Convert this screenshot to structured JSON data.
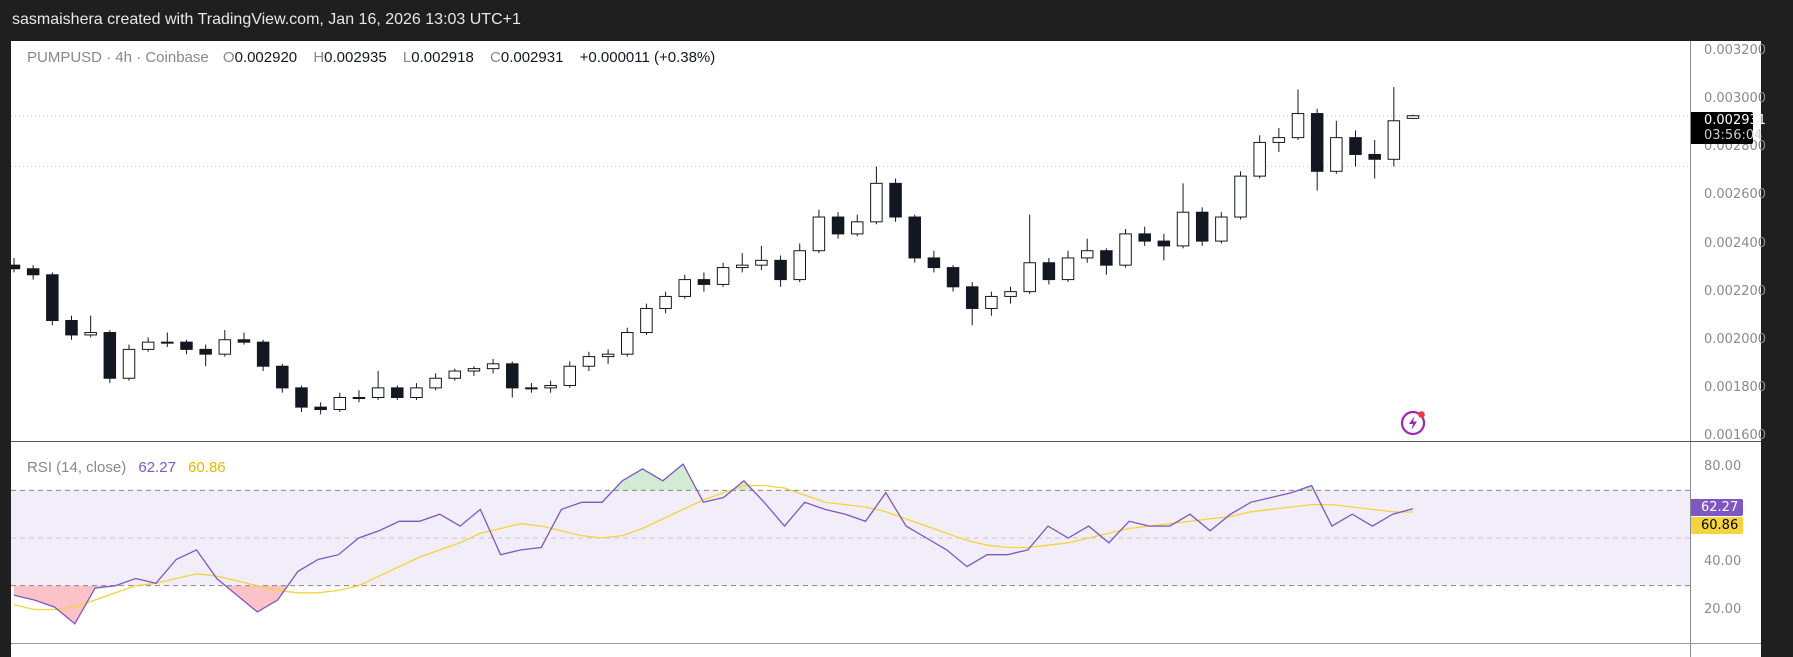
{
  "header": {
    "credit": "sasmaishera created with TradingView.com, Jan 16, 2026 13:03 UTC+1"
  },
  "legend": {
    "symbol": "PUMPUSD · 4h · Coinbase",
    "o_label": "O",
    "o": "0.002920",
    "h_label": "H",
    "h": "0.002935",
    "l_label": "L",
    "l": "0.002918",
    "c_label": "C",
    "c": "0.002931",
    "change": "+0.000011 (+0.38%)"
  },
  "price_tag": {
    "price": "0.002931",
    "countdown": "03:56:04"
  },
  "rsi_legend": {
    "label": "RSI (14, close)",
    "rsi": "62.27",
    "ma": "60.86"
  },
  "colors": {
    "up": "#ffffff",
    "down": "#131722",
    "rsi": "#7e57c2",
    "rsi_ma": "#f5d33b",
    "band": "#7e57c2",
    "bolt": "#9c27b0"
  },
  "icons": {
    "alert": "lightning-bolt-icon"
  },
  "chart_data": [
    {
      "type": "candlestick",
      "title": "PUMPUSD · 4h · Coinbase",
      "ylim": [
        0.0016,
        0.0032
      ],
      "y_ticks": [
        "0.003200",
        "0.003000",
        "0.002800",
        "0.002600",
        "0.002400",
        "0.002200",
        "0.002000",
        "0.001800",
        "0.001600"
      ],
      "y_tick_values": [
        0.0032,
        0.003,
        0.0028,
        0.0026,
        0.0024,
        0.0022,
        0.002,
        0.0018,
        0.0016
      ],
      "last_price_line": 0.002931,
      "reference_line": 0.00272,
      "candles": [
        [
          0.00231,
          0.00234,
          0.00228,
          0.002295
        ],
        [
          0.002295,
          0.00231,
          0.00225,
          0.00227
        ],
        [
          0.00227,
          0.00228,
          0.00206,
          0.00208
        ],
        [
          0.00208,
          0.0021,
          0.002,
          0.00202
        ],
        [
          0.00202,
          0.0021,
          0.00201,
          0.00203
        ],
        [
          0.00203,
          0.00204,
          0.00182,
          0.00184
        ],
        [
          0.00184,
          0.00198,
          0.00183,
          0.00196
        ],
        [
          0.00196,
          0.00201,
          0.00195,
          0.00199
        ],
        [
          0.00199,
          0.00203,
          0.00197,
          0.00199
        ],
        [
          0.00199,
          0.002,
          0.00194,
          0.00196
        ],
        [
          0.00196,
          0.00198,
          0.00189,
          0.00194
        ],
        [
          0.00194,
          0.00204,
          0.00193,
          0.002
        ],
        [
          0.002,
          0.00203,
          0.00198,
          0.00199
        ],
        [
          0.00199,
          0.002,
          0.00187,
          0.00189
        ],
        [
          0.00189,
          0.0019,
          0.00178,
          0.0018
        ],
        [
          0.0018,
          0.00181,
          0.0017,
          0.00172
        ],
        [
          0.00172,
          0.00174,
          0.00169,
          0.00171
        ],
        [
          0.00171,
          0.00178,
          0.0017,
          0.00176
        ],
        [
          0.00176,
          0.00179,
          0.00174,
          0.00176
        ],
        [
          0.00176,
          0.00187,
          0.00175,
          0.0018
        ],
        [
          0.0018,
          0.00181,
          0.00175,
          0.00176
        ],
        [
          0.00176,
          0.00182,
          0.00175,
          0.0018
        ],
        [
          0.0018,
          0.00186,
          0.00179,
          0.00184
        ],
        [
          0.00184,
          0.00188,
          0.00183,
          0.00187
        ],
        [
          0.00187,
          0.00189,
          0.00185,
          0.00188
        ],
        [
          0.00188,
          0.00192,
          0.00186,
          0.0019
        ],
        [
          0.0019,
          0.00191,
          0.00176,
          0.0018
        ],
        [
          0.0018,
          0.00182,
          0.00178,
          0.0018
        ],
        [
          0.0018,
          0.00183,
          0.00178,
          0.00181
        ],
        [
          0.00181,
          0.00191,
          0.0018,
          0.00189
        ],
        [
          0.00189,
          0.00195,
          0.00187,
          0.00193
        ],
        [
          0.00193,
          0.00196,
          0.0019,
          0.00194
        ],
        [
          0.00194,
          0.00205,
          0.00193,
          0.00203
        ],
        [
          0.00203,
          0.00215,
          0.00202,
          0.00213
        ],
        [
          0.00213,
          0.0022,
          0.00211,
          0.00218
        ],
        [
          0.00218,
          0.00227,
          0.00217,
          0.00225
        ],
        [
          0.00225,
          0.00228,
          0.0022,
          0.00223
        ],
        [
          0.00223,
          0.00232,
          0.00222,
          0.0023
        ],
        [
          0.0023,
          0.00236,
          0.00228,
          0.00231
        ],
        [
          0.00231,
          0.00239,
          0.00229,
          0.00233
        ],
        [
          0.00233,
          0.00235,
          0.00222,
          0.00225
        ],
        [
          0.00225,
          0.0024,
          0.00224,
          0.00237
        ],
        [
          0.00237,
          0.00254,
          0.00236,
          0.00251
        ],
        [
          0.00251,
          0.00253,
          0.00242,
          0.00244
        ],
        [
          0.00244,
          0.00252,
          0.00243,
          0.00249
        ],
        [
          0.00249,
          0.00272,
          0.00248,
          0.00265
        ],
        [
          0.00265,
          0.00267,
          0.00249,
          0.00251
        ],
        [
          0.00251,
          0.00252,
          0.00232,
          0.00234
        ],
        [
          0.00234,
          0.00237,
          0.00228,
          0.0023
        ],
        [
          0.0023,
          0.00231,
          0.0022,
          0.00222
        ],
        [
          0.00222,
          0.00224,
          0.00206,
          0.00213
        ],
        [
          0.00213,
          0.0022,
          0.0021,
          0.00218
        ],
        [
          0.00218,
          0.00222,
          0.00215,
          0.0022
        ],
        [
          0.0022,
          0.00252,
          0.00219,
          0.00232
        ],
        [
          0.00232,
          0.00234,
          0.00223,
          0.00225
        ],
        [
          0.00225,
          0.00237,
          0.00224,
          0.00234
        ],
        [
          0.00234,
          0.00242,
          0.00232,
          0.00237
        ],
        [
          0.00237,
          0.00238,
          0.00227,
          0.00231
        ],
        [
          0.00231,
          0.00246,
          0.0023,
          0.00244
        ],
        [
          0.00244,
          0.00247,
          0.00239,
          0.00241
        ],
        [
          0.00241,
          0.00244,
          0.00233,
          0.00239
        ],
        [
          0.00239,
          0.00265,
          0.00238,
          0.00253
        ],
        [
          0.00253,
          0.00255,
          0.00239,
          0.00241
        ],
        [
          0.00241,
          0.00253,
          0.0024,
          0.00251
        ],
        [
          0.00251,
          0.0027,
          0.0025,
          0.00268
        ],
        [
          0.00268,
          0.00285,
          0.00267,
          0.00282
        ],
        [
          0.00282,
          0.00288,
          0.00278,
          0.00284
        ],
        [
          0.00284,
          0.00304,
          0.00283,
          0.00294
        ],
        [
          0.00294,
          0.00296,
          0.00262,
          0.0027
        ],
        [
          0.0027,
          0.00291,
          0.00269,
          0.00284
        ],
        [
          0.00284,
          0.00287,
          0.00272,
          0.00277
        ],
        [
          0.00277,
          0.00283,
          0.00267,
          0.00275
        ],
        [
          0.00275,
          0.00305,
          0.00272,
          0.00291
        ],
        [
          0.00292,
          0.002935,
          0.002918,
          0.002931
        ]
      ]
    },
    {
      "type": "line",
      "title": "RSI (14, close)",
      "ylim": [
        10,
        90
      ],
      "y_ticks": [
        "80.00",
        "40.00",
        "20.00"
      ],
      "y_tick_values": [
        80,
        40,
        20
      ],
      "bands": {
        "upper": 70,
        "middle": 50,
        "lower": 30
      },
      "series": [
        {
          "name": "RSI",
          "values": [
            26,
            24,
            21,
            14,
            29,
            30,
            33,
            31,
            41,
            45,
            33,
            26,
            19,
            24,
            36,
            41,
            43,
            50,
            53,
            57,
            57,
            60,
            55,
            62,
            43,
            45,
            46,
            62,
            65,
            65,
            74,
            79,
            74,
            81,
            65,
            67,
            74,
            65,
            55,
            65,
            62,
            60,
            57,
            69,
            55,
            50,
            45,
            38,
            43,
            43,
            45,
            55,
            50,
            55,
            48,
            57,
            55,
            55,
            60,
            53,
            60,
            65,
            67,
            69,
            72,
            55,
            60,
            55,
            60,
            62.27
          ]
        },
        {
          "name": "RSI-based MA",
          "values": [
            22,
            20,
            20,
            21,
            24,
            27,
            30,
            31,
            33,
            35,
            34,
            32,
            30,
            28,
            27,
            27,
            28,
            30,
            34,
            38,
            42,
            45,
            48,
            52,
            54,
            56,
            55,
            53,
            51,
            50,
            51,
            54,
            58,
            62,
            66,
            69,
            72,
            72,
            71,
            68,
            65,
            64,
            63,
            61,
            58,
            55,
            52,
            49,
            47,
            46,
            46,
            47,
            48,
            50,
            52,
            54,
            55,
            56,
            57,
            58,
            59,
            61,
            62,
            63,
            64,
            64,
            63,
            62,
            61,
            60.86
          ]
        }
      ]
    }
  ]
}
